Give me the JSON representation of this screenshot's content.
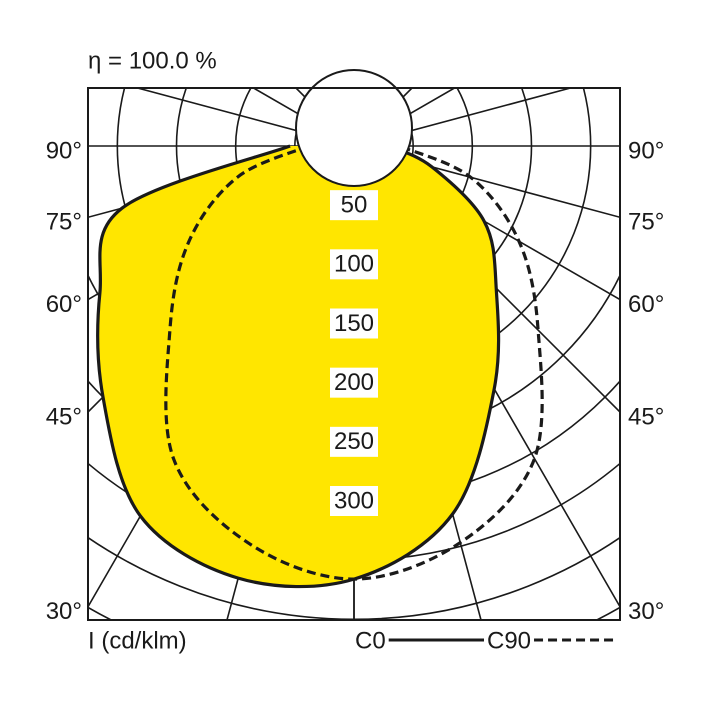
{
  "chart_data": {
    "type": "polar",
    "title": "η = 100.0 %",
    "unit_label": "I (cd/klm)",
    "x": [
      -90,
      -75,
      -60,
      -45,
      -30,
      -15,
      0,
      15,
      30,
      45,
      60,
      75,
      90
    ],
    "series": [
      {
        "name": "C0",
        "color": "#1a1a1a",
        "fill": "#ffe600",
        "dash": false,
        "values": [
          54,
          203,
          248,
          300,
          361,
          378,
          366,
          322,
          237,
          170,
          127,
          68,
          30
        ]
      },
      {
        "name": "C90",
        "color": "#1a1a1a",
        "dash": true,
        "values": [
          38,
          102,
          161,
          220,
          305,
          347,
          366,
          347,
          305,
          220,
          161,
          102,
          38
        ]
      }
    ],
    "rticks": [
      50,
      100,
      150,
      200,
      250,
      300
    ],
    "rgrid": [
      50,
      100,
      150,
      200,
      250,
      300,
      350,
      400,
      450
    ],
    "aticks": [
      {
        "value": 90,
        "label": "90°"
      },
      {
        "value": 75,
        "label": "75°"
      },
      {
        "value": 60,
        "label": "60°"
      },
      {
        "value": 45,
        "label": "45°"
      },
      {
        "value": 30,
        "label": "30°"
      }
    ],
    "agrid": [
      0,
      15,
      30,
      45,
      60,
      75,
      90,
      105,
      120,
      135,
      150,
      165,
      180
    ]
  }
}
